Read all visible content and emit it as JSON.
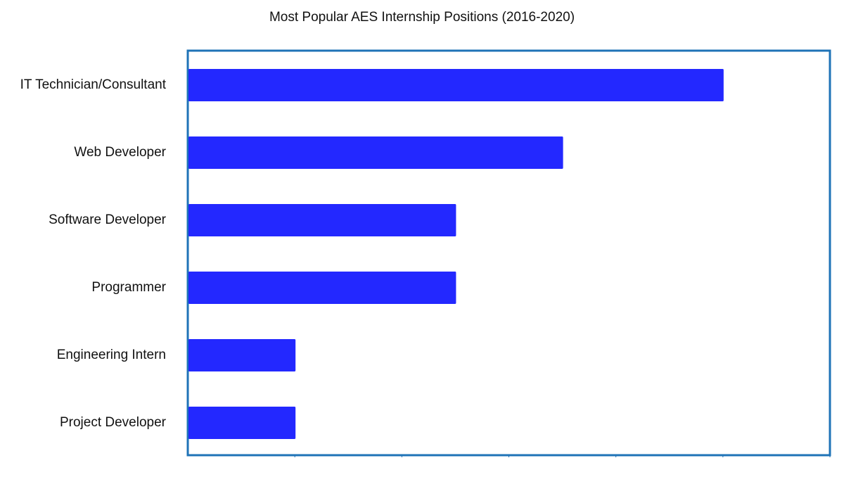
{
  "chart_data": {
    "type": "bar",
    "orientation": "horizontal",
    "title": "Most Popular AES Internship Positions (2016-2020)",
    "xlabel": "",
    "ylabel": "",
    "categories": [
      "IT Technician/Consultant",
      "Web Developer",
      "Software Developer",
      "Programmer",
      "Engineering Intern",
      "Project Developer"
    ],
    "values": [
      5,
      3.5,
      2.5,
      2.5,
      1,
      1
    ],
    "xlim": [
      0,
      6
    ],
    "x_tick_labels_shown": false,
    "grid": false,
    "legend": "none"
  },
  "colors": {
    "bar": "#2328ff",
    "axes_frame": "#1f73b7",
    "title_text": "#111111",
    "label_text": "#111111",
    "background": "#ffffff"
  }
}
